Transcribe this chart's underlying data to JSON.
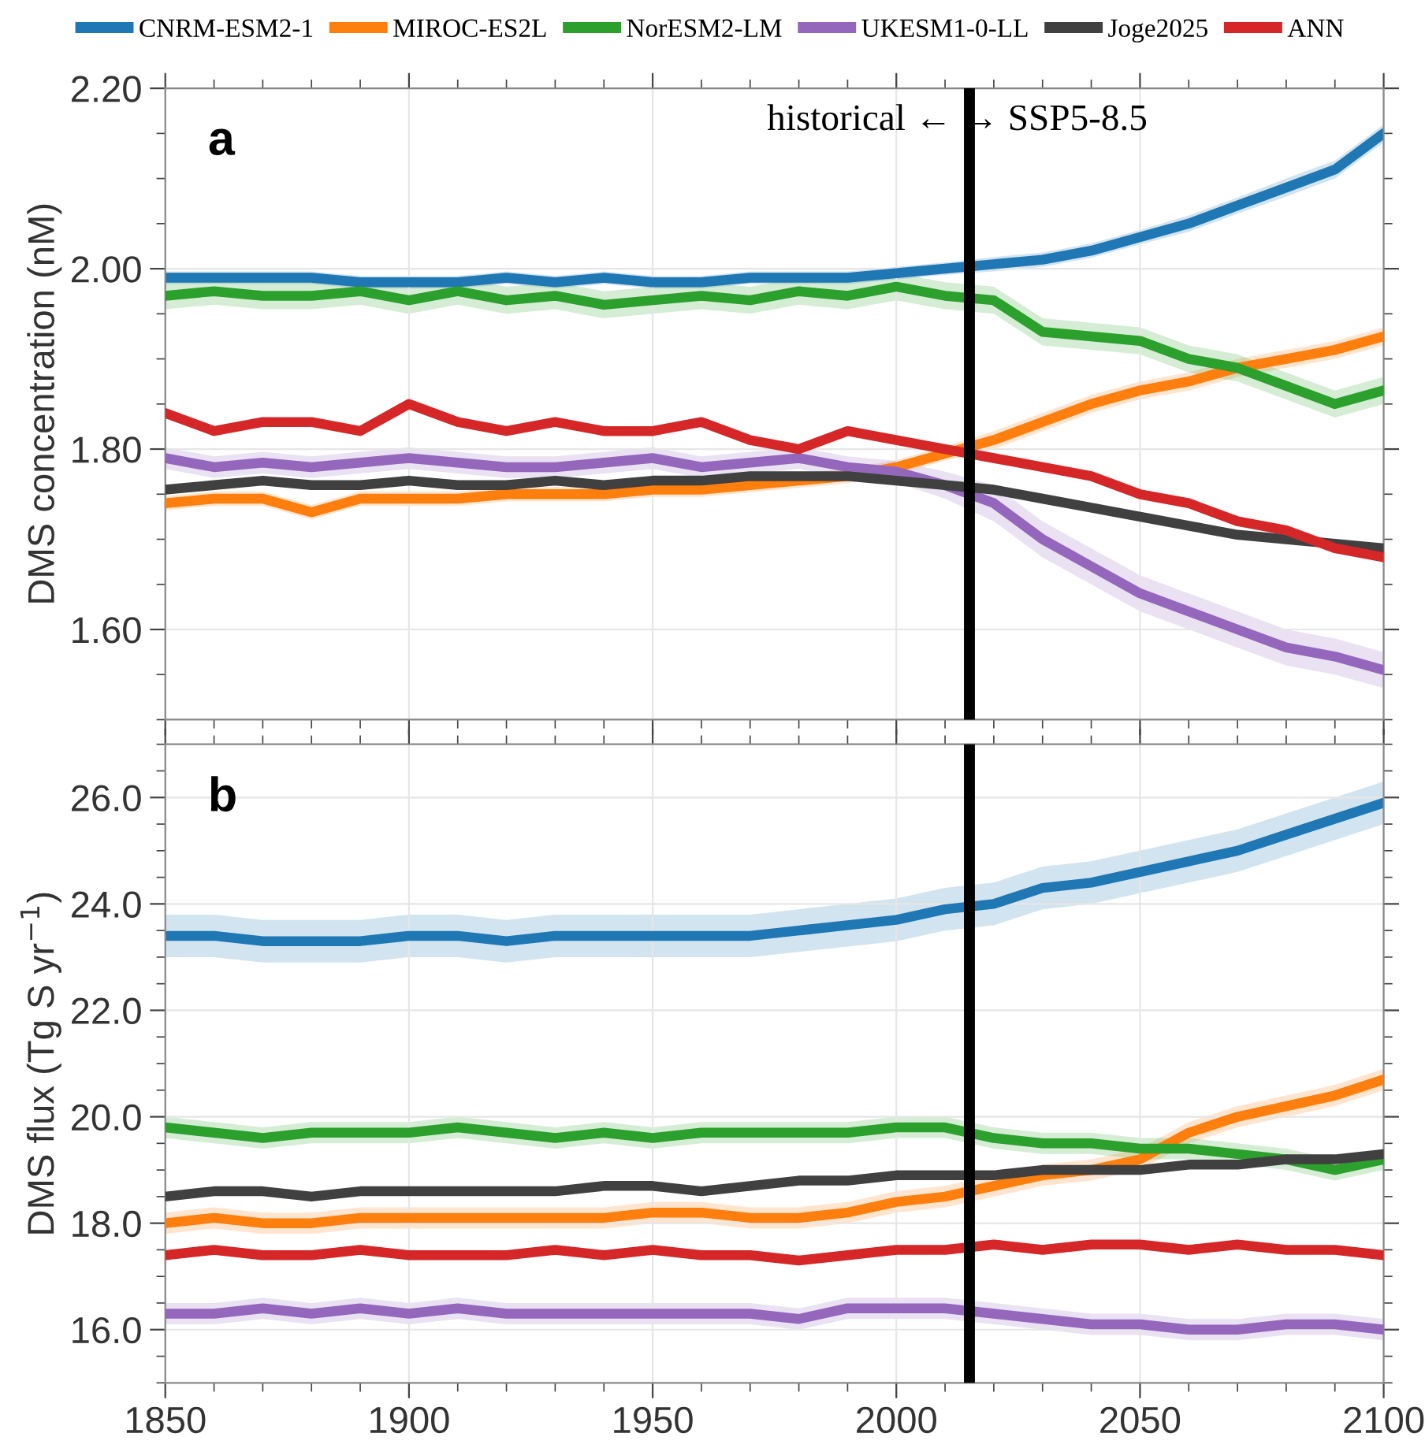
{
  "chart_data": [
    {
      "type": "line",
      "ylabel": "DMS concentration (nM)",
      "annotations": [
        "a",
        "historical ← → SSP5-8.5"
      ],
      "x": [
        1850,
        1860,
        1870,
        1880,
        1890,
        1900,
        1910,
        1920,
        1930,
        1940,
        1950,
        1960,
        1970,
        1980,
        1990,
        2000,
        2010,
        2020,
        2030,
        2040,
        2050,
        2060,
        2070,
        2080,
        2090,
        2100
      ],
      "xlim": [
        1850,
        2100
      ],
      "xticks": [
        1850,
        1900,
        1950,
        2000,
        2050,
        2100
      ],
      "ylim": [
        1.5,
        2.2
      ],
      "yticks": [
        {
          "value": 1.6,
          "label": "1.60"
        },
        {
          "value": 1.8,
          "label": "1.80"
        },
        {
          "value": 2.0,
          "label": "2.00"
        },
        {
          "value": 2.2,
          "label": "2.20"
        }
      ],
      "tick_labels": "y",
      "grid": true,
      "legend": "top",
      "line_style": "solid",
      "marker": "none",
      "ref_lines": [
        {
          "axis": "x",
          "value": 2015,
          "color": "#000000",
          "line_style": "solid"
        }
      ],
      "series": [
        {
          "name": "CNRM-ESM2-1",
          "color": "#1f77b4",
          "values": [
            1.99,
            1.99,
            1.99,
            1.99,
            1.985,
            1.985,
            1.985,
            1.99,
            1.985,
            1.99,
            1.985,
            1.985,
            1.99,
            1.99,
            1.99,
            1.995,
            2.0,
            2.005,
            2.01,
            2.02,
            2.035,
            2.05,
            2.07,
            2.09,
            2.11,
            2.15
          ],
          "lower": [
            1.983,
            1.983,
            1.983,
            1.983,
            1.978,
            1.978,
            1.978,
            1.983,
            1.978,
            1.983,
            1.978,
            1.978,
            1.983,
            1.983,
            1.983,
            1.988,
            1.993,
            1.997,
            2.002,
            2.012,
            2.027,
            2.041,
            2.061,
            2.08,
            2.1,
            2.14
          ],
          "upper": [
            1.997,
            1.997,
            1.997,
            1.997,
            1.992,
            1.992,
            1.992,
            1.997,
            1.992,
            1.997,
            1.992,
            1.992,
            1.997,
            1.997,
            1.997,
            2.002,
            2.007,
            2.013,
            2.018,
            2.028,
            2.043,
            2.059,
            2.079,
            2.1,
            2.12,
            2.16
          ]
        },
        {
          "name": "MIROC-ES2L",
          "color": "#ff7f0e",
          "values": [
            1.74,
            1.745,
            1.745,
            1.73,
            1.745,
            1.745,
            1.745,
            1.75,
            1.75,
            1.75,
            1.755,
            1.755,
            1.76,
            1.765,
            1.77,
            1.78,
            1.795,
            1.81,
            1.83,
            1.85,
            1.865,
            1.875,
            1.89,
            1.9,
            1.91,
            1.925
          ],
          "lower": [
            1.732,
            1.737,
            1.737,
            1.722,
            1.737,
            1.737,
            1.737,
            1.742,
            1.742,
            1.742,
            1.747,
            1.747,
            1.752,
            1.757,
            1.762,
            1.772,
            1.787,
            1.8,
            1.82,
            1.84,
            1.855,
            1.865,
            1.88,
            1.89,
            1.9,
            1.915
          ],
          "upper": [
            1.748,
            1.753,
            1.753,
            1.738,
            1.753,
            1.753,
            1.753,
            1.758,
            1.758,
            1.758,
            1.763,
            1.763,
            1.768,
            1.773,
            1.778,
            1.788,
            1.803,
            1.82,
            1.84,
            1.86,
            1.875,
            1.885,
            1.9,
            1.91,
            1.92,
            1.935
          ]
        },
        {
          "name": "NorESM2-LM",
          "color": "#2ca02c",
          "values": [
            1.97,
            1.975,
            1.97,
            1.97,
            1.975,
            1.965,
            1.975,
            1.965,
            1.97,
            1.96,
            1.965,
            1.97,
            1.965,
            1.975,
            1.97,
            1.98,
            1.97,
            1.965,
            1.93,
            1.925,
            1.92,
            1.9,
            1.89,
            1.87,
            1.85,
            1.865
          ],
          "lower": [
            1.955,
            1.96,
            1.955,
            1.955,
            1.96,
            1.95,
            1.96,
            1.95,
            1.955,
            1.945,
            1.95,
            1.955,
            1.95,
            1.96,
            1.955,
            1.965,
            1.955,
            1.95,
            1.915,
            1.91,
            1.905,
            1.885,
            1.875,
            1.855,
            1.835,
            1.85
          ],
          "upper": [
            1.985,
            1.99,
            1.985,
            1.985,
            1.99,
            1.98,
            1.99,
            1.98,
            1.985,
            1.975,
            1.98,
            1.985,
            1.98,
            1.99,
            1.985,
            1.995,
            1.985,
            1.98,
            1.945,
            1.94,
            1.935,
            1.915,
            1.905,
            1.885,
            1.865,
            1.88
          ]
        },
        {
          "name": "UKESM1-0-LL",
          "color": "#9467bd",
          "values": [
            1.79,
            1.78,
            1.785,
            1.78,
            1.785,
            1.79,
            1.785,
            1.78,
            1.78,
            1.785,
            1.79,
            1.78,
            1.785,
            1.79,
            1.78,
            1.775,
            1.76,
            1.74,
            1.7,
            1.67,
            1.64,
            1.62,
            1.6,
            1.58,
            1.57,
            1.555
          ],
          "lower": [
            1.778,
            1.768,
            1.773,
            1.768,
            1.773,
            1.778,
            1.773,
            1.768,
            1.768,
            1.773,
            1.778,
            1.768,
            1.773,
            1.778,
            1.768,
            1.763,
            1.745,
            1.72,
            1.68,
            1.65,
            1.62,
            1.6,
            1.58,
            1.56,
            1.55,
            1.535
          ],
          "upper": [
            1.802,
            1.792,
            1.797,
            1.792,
            1.797,
            1.802,
            1.797,
            1.792,
            1.792,
            1.797,
            1.802,
            1.792,
            1.797,
            1.802,
            1.792,
            1.787,
            1.775,
            1.76,
            1.72,
            1.69,
            1.66,
            1.64,
            1.62,
            1.6,
            1.59,
            1.575
          ]
        },
        {
          "name": "Joge2025",
          "color": "#404040",
          "values": [
            1.755,
            1.76,
            1.765,
            1.76,
            1.76,
            1.765,
            1.76,
            1.76,
            1.765,
            1.76,
            1.765,
            1.765,
            1.77,
            1.77,
            1.77,
            1.765,
            1.76,
            1.755,
            1.745,
            1.735,
            1.725,
            1.715,
            1.705,
            1.7,
            1.695,
            1.69
          ]
        },
        {
          "name": "ANN",
          "color": "#d62728",
          "values": [
            1.84,
            1.82,
            1.83,
            1.83,
            1.82,
            1.85,
            1.83,
            1.82,
            1.83,
            1.82,
            1.82,
            1.83,
            1.81,
            1.8,
            1.82,
            1.81,
            1.8,
            1.79,
            1.78,
            1.77,
            1.75,
            1.74,
            1.72,
            1.71,
            1.69,
            1.68
          ]
        }
      ]
    },
    {
      "type": "line",
      "ylabel": "DMS flux (Tg S yr$^{−1}$)",
      "annotations": [
        "b"
      ],
      "x": [
        1850,
        1860,
        1870,
        1880,
        1890,
        1900,
        1910,
        1920,
        1930,
        1940,
        1950,
        1960,
        1970,
        1980,
        1990,
        2000,
        2010,
        2020,
        2030,
        2040,
        2050,
        2060,
        2070,
        2080,
        2090,
        2100
      ],
      "xlim": [
        1850,
        2100
      ],
      "xticks": [
        1850,
        1900,
        1950,
        2000,
        2050,
        2100
      ],
      "ylim": [
        15,
        27
      ],
      "yticks": [
        {
          "value": 16,
          "label": "16.0"
        },
        {
          "value": 18,
          "label": "18.0"
        },
        {
          "value": 20,
          "label": "20.0"
        },
        {
          "value": 22,
          "label": "22.0"
        },
        {
          "value": 24,
          "label": "24.0"
        },
        {
          "value": 26,
          "label": "26.0"
        }
      ],
      "grid": true,
      "line_style": "solid",
      "marker": "none",
      "ref_lines": [
        {
          "axis": "x",
          "value": 2015,
          "color": "#000000",
          "line_style": "solid"
        }
      ],
      "series": [
        {
          "color": "#1f77b4",
          "values": [
            23.4,
            23.4,
            23.3,
            23.3,
            23.3,
            23.4,
            23.4,
            23.3,
            23.4,
            23.4,
            23.4,
            23.4,
            23.4,
            23.5,
            23.6,
            23.7,
            23.9,
            24.0,
            24.3,
            24.4,
            24.6,
            24.8,
            25.0,
            25.3,
            25.6,
            25.9
          ],
          "lower": [
            23.0,
            23.0,
            22.9,
            22.9,
            22.9,
            23.0,
            23.0,
            22.9,
            23.0,
            23.0,
            23.0,
            23.0,
            23.0,
            23.1,
            23.2,
            23.3,
            23.5,
            23.6,
            23.9,
            24.0,
            24.2,
            24.4,
            24.6,
            24.9,
            25.2,
            25.5
          ],
          "upper": [
            23.8,
            23.8,
            23.7,
            23.7,
            23.7,
            23.8,
            23.8,
            23.7,
            23.8,
            23.8,
            23.8,
            23.8,
            23.8,
            23.9,
            24.0,
            24.1,
            24.3,
            24.4,
            24.7,
            24.8,
            25.0,
            25.2,
            25.4,
            25.7,
            26.0,
            26.3
          ]
        },
        {
          "color": "#ff7f0e",
          "values": [
            18.0,
            18.1,
            18.0,
            18.0,
            18.1,
            18.1,
            18.1,
            18.1,
            18.1,
            18.1,
            18.2,
            18.2,
            18.1,
            18.1,
            18.2,
            18.4,
            18.5,
            18.7,
            18.9,
            19.0,
            19.2,
            19.7,
            20.0,
            20.2,
            20.4,
            20.7
          ],
          "lower": [
            17.8,
            17.9,
            17.8,
            17.8,
            17.9,
            17.9,
            17.9,
            17.9,
            17.9,
            17.9,
            18.0,
            18.0,
            17.9,
            17.9,
            18.0,
            18.2,
            18.3,
            18.5,
            18.7,
            18.8,
            19.0,
            19.5,
            19.8,
            20.0,
            20.2,
            20.5
          ],
          "upper": [
            18.2,
            18.3,
            18.2,
            18.2,
            18.3,
            18.3,
            18.3,
            18.3,
            18.3,
            18.3,
            18.4,
            18.4,
            18.3,
            18.3,
            18.4,
            18.6,
            18.7,
            18.9,
            19.1,
            19.2,
            19.4,
            19.9,
            20.2,
            20.4,
            20.6,
            20.9
          ]
        },
        {
          "color": "#2ca02c",
          "values": [
            19.8,
            19.7,
            19.6,
            19.7,
            19.7,
            19.7,
            19.8,
            19.7,
            19.6,
            19.7,
            19.6,
            19.7,
            19.7,
            19.7,
            19.7,
            19.8,
            19.8,
            19.6,
            19.5,
            19.5,
            19.4,
            19.4,
            19.3,
            19.2,
            19.0,
            19.2
          ],
          "lower": [
            19.6,
            19.5,
            19.4,
            19.5,
            19.5,
            19.5,
            19.6,
            19.5,
            19.4,
            19.5,
            19.4,
            19.5,
            19.5,
            19.5,
            19.5,
            19.6,
            19.6,
            19.4,
            19.3,
            19.3,
            19.2,
            19.2,
            19.1,
            19.0,
            18.8,
            19.0
          ],
          "upper": [
            20.0,
            19.9,
            19.8,
            19.9,
            19.9,
            19.9,
            20.0,
            19.9,
            19.8,
            19.9,
            19.8,
            19.9,
            19.9,
            19.9,
            19.9,
            20.0,
            20.0,
            19.8,
            19.7,
            19.7,
            19.6,
            19.6,
            19.5,
            19.4,
            19.2,
            19.4
          ]
        },
        {
          "color": "#9467bd",
          "values": [
            16.3,
            16.3,
            16.4,
            16.3,
            16.4,
            16.3,
            16.4,
            16.3,
            16.3,
            16.3,
            16.3,
            16.3,
            16.3,
            16.2,
            16.4,
            16.4,
            16.4,
            16.3,
            16.2,
            16.1,
            16.1,
            16.0,
            16.0,
            16.1,
            16.1,
            16.0
          ],
          "lower": [
            16.1,
            16.1,
            16.2,
            16.1,
            16.2,
            16.1,
            16.2,
            16.1,
            16.1,
            16.1,
            16.1,
            16.1,
            16.1,
            16.0,
            16.2,
            16.2,
            16.2,
            16.1,
            16.0,
            15.9,
            15.9,
            15.8,
            15.8,
            15.9,
            15.9,
            15.8
          ],
          "upper": [
            16.5,
            16.5,
            16.6,
            16.5,
            16.6,
            16.5,
            16.6,
            16.5,
            16.5,
            16.5,
            16.5,
            16.5,
            16.5,
            16.4,
            16.6,
            16.6,
            16.6,
            16.5,
            16.4,
            16.3,
            16.3,
            16.2,
            16.2,
            16.3,
            16.3,
            16.2
          ]
        },
        {
          "color": "#404040",
          "values": [
            18.5,
            18.6,
            18.6,
            18.5,
            18.6,
            18.6,
            18.6,
            18.6,
            18.6,
            18.7,
            18.7,
            18.6,
            18.7,
            18.8,
            18.8,
            18.9,
            18.9,
            18.9,
            19.0,
            19.0,
            19.0,
            19.1,
            19.1,
            19.2,
            19.2,
            19.3
          ]
        },
        {
          "color": "#d62728",
          "values": [
            17.4,
            17.5,
            17.4,
            17.4,
            17.5,
            17.4,
            17.4,
            17.4,
            17.5,
            17.4,
            17.5,
            17.4,
            17.4,
            17.3,
            17.4,
            17.5,
            17.5,
            17.6,
            17.5,
            17.6,
            17.6,
            17.5,
            17.6,
            17.5,
            17.5,
            17.4
          ]
        }
      ]
    }
  ]
}
